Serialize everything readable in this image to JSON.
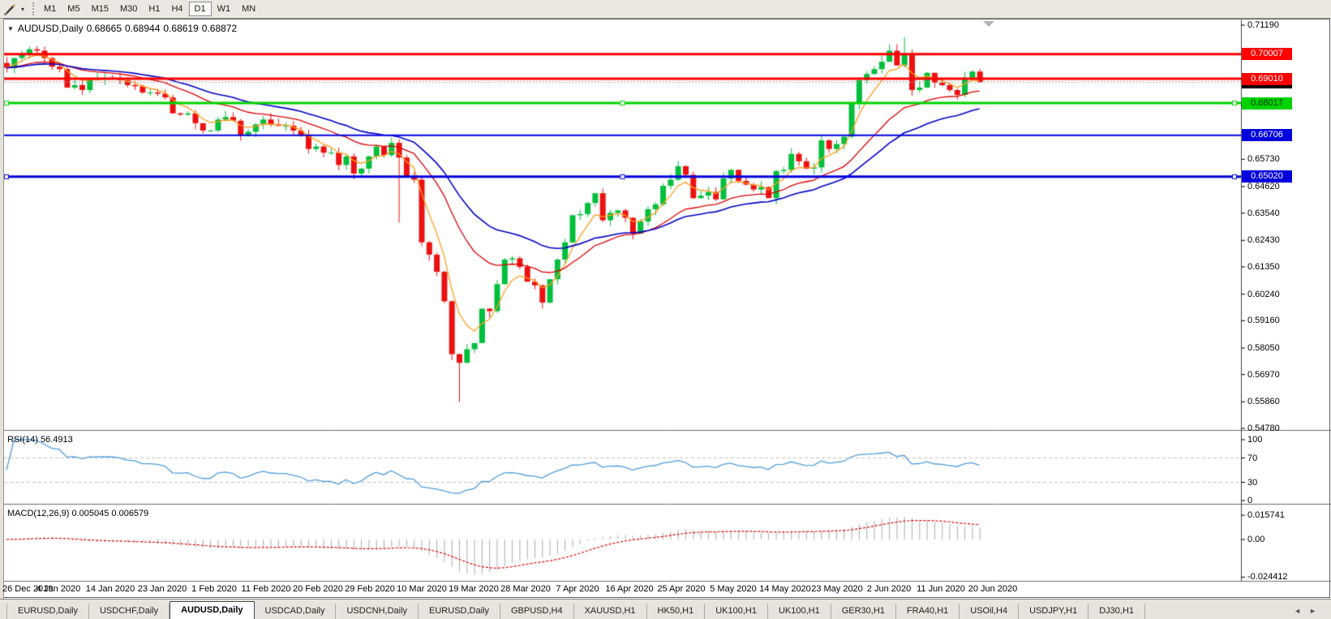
{
  "toolbar": {
    "dropdown_icon": "▾",
    "timeframes": [
      {
        "label": "M1",
        "active": false
      },
      {
        "label": "M5",
        "active": false
      },
      {
        "label": "M15",
        "active": false
      },
      {
        "label": "M30",
        "active": false
      },
      {
        "label": "H1",
        "active": false
      },
      {
        "label": "H4",
        "active": false
      },
      {
        "label": "D1",
        "active": true
      },
      {
        "label": "W1",
        "active": false
      },
      {
        "label": "MN",
        "active": false
      }
    ]
  },
  "chart_title": {
    "menu_icon": "▼",
    "symbol": "AUDUSD,Daily",
    "open": "0.68665",
    "high": "0.68944",
    "low": "0.68619",
    "close": "0.68872"
  },
  "panels": {
    "rsi_label": "RSI(14) 56.4913",
    "macd_label": "MACD(12,26,9) 0.005045 0.006579"
  },
  "price_axis": {
    "ticks": [
      "0.71190",
      "0.70110",
      "0.69000",
      "0.67920",
      "0.66810",
      "0.65730",
      "0.64620",
      "0.63540",
      "0.62430",
      "0.61350",
      "0.60240",
      "0.59160",
      "0.58050",
      "0.56970",
      "0.55860",
      "0.54780"
    ],
    "badges": [
      {
        "label": "0.68872",
        "price": 0.68872,
        "bg": "#000000",
        "fg": "#ffffff",
        "name": "current-price-badge",
        "interactable": false
      },
      {
        "label": "0.68017",
        "price": 0.68017,
        "bg": "#00d400",
        "fg": "#013301",
        "name": "hline-price-badge-green",
        "interactable": true
      },
      {
        "label": "0.66706",
        "price": 0.66706,
        "bg": "#0000dd",
        "fg": "#ffffff",
        "name": "hline-price-badge-blue",
        "interactable": true
      },
      {
        "label": "0.65020",
        "price": 0.6502,
        "bg": "#0000dd",
        "fg": "#ffffff",
        "name": "hline-price-badge-blue",
        "interactable": true
      },
      {
        "label": "0.70007",
        "price": 0.70007,
        "bg": "#fe0000",
        "fg": "#ffffff",
        "name": "hline-price-badge-red",
        "interactable": true
      },
      {
        "label": "0.69010",
        "price": 0.6901,
        "bg": "#fe0000",
        "fg": "#ffffff",
        "name": "hline-price-badge-red",
        "interactable": true
      }
    ]
  },
  "rsi_axis": [
    "100",
    "70",
    "30",
    "0"
  ],
  "macd_axis": [
    "0.015741",
    "0.00",
    "-0.024412"
  ],
  "date_axis": [
    "26 Dec 2019",
    "4 Jan 2020",
    "14 Jan 2020",
    "23 Jan 2020",
    "1 Feb 2020",
    "11 Feb 2020",
    "20 Feb 2020",
    "29 Feb 2020",
    "10 Mar 2020",
    "19 Mar 2020",
    "28 Mar 2020",
    "7 Apr 2020",
    "16 Apr 2020",
    "25 Apr 2020",
    "5 May 2020",
    "14 May 2020",
    "23 May 2020",
    "2 Jun 2020",
    "11 Jun 2020",
    "20 Jun 2020"
  ],
  "chart_data": {
    "type": "candlestick",
    "symbol": "AUDUSD",
    "period": "Daily",
    "ohlc_last": {
      "open": 0.68665,
      "high": 0.68944,
      "low": 0.68619,
      "close": 0.68872
    },
    "ylim": [
      0.5478,
      0.7119
    ],
    "closes": [
      0.6945,
      0.6985,
      0.7,
      0.7021,
      0.7015,
      0.6985,
      0.695,
      0.694,
      0.6865,
      0.6875,
      0.6855,
      0.69,
      0.69,
      0.6905,
      0.6902,
      0.6895,
      0.6875,
      0.687,
      0.6845,
      0.6845,
      0.684,
      0.6825,
      0.676,
      0.6755,
      0.676,
      0.672,
      0.669,
      0.669,
      0.6735,
      0.6745,
      0.673,
      0.667,
      0.6685,
      0.6715,
      0.6735,
      0.6715,
      0.671,
      0.671,
      0.669,
      0.667,
      0.6615,
      0.6625,
      0.66,
      0.66,
      0.655,
      0.6585,
      0.6515,
      0.6535,
      0.6585,
      0.6625,
      0.659,
      0.664,
      0.658,
      0.65,
      0.649,
      0.6235,
      0.6185,
      0.6115,
      0.5995,
      0.578,
      0.5745,
      0.58,
      0.5825,
      0.5965,
      0.5955,
      0.6065,
      0.6165,
      0.617,
      0.6135,
      0.6075,
      0.606,
      0.599,
      0.6085,
      0.6165,
      0.6235,
      0.6345,
      0.635,
      0.6395,
      0.6435,
      0.6325,
      0.6355,
      0.6365,
      0.6335,
      0.627,
      0.632,
      0.637,
      0.639,
      0.6465,
      0.649,
      0.6545,
      0.651,
      0.6415,
      0.6425,
      0.644,
      0.641,
      0.6495,
      0.653,
      0.6485,
      0.647,
      0.645,
      0.646,
      0.6415,
      0.6525,
      0.653,
      0.6595,
      0.6565,
      0.6535,
      0.654,
      0.665,
      0.6615,
      0.6635,
      0.6665,
      0.68,
      0.6895,
      0.692,
      0.694,
      0.697,
      0.7015,
      0.6955,
      0.7,
      0.6855,
      0.6865,
      0.6925,
      0.6885,
      0.6875,
      0.6855,
      0.6835,
      0.6905,
      0.693,
      0.6887
    ],
    "wick_overrides": {
      "3": {
        "high": 0.7032
      },
      "52": {
        "low": 0.6315
      },
      "60": {
        "low": 0.5585
      },
      "117": {
        "high": 0.704
      },
      "119": {
        "high": 0.707
      }
    },
    "candle_colors": {
      "up": "#00bf3c",
      "down": "#ec1111"
    },
    "moving_averages": [
      {
        "period": 5,
        "color": "#ff9d1e",
        "width": 1.3
      },
      {
        "period": 18,
        "color": "#db0000",
        "width": 1.3
      },
      {
        "period": 30,
        "color": "#0000c8",
        "width": 1.6
      }
    ],
    "hlines": [
      {
        "price": 0.70007,
        "color": "#fe0000",
        "width": 3,
        "style": "solid",
        "handles": false
      },
      {
        "price": 0.6901,
        "color": "#fe0000",
        "width": 3,
        "style": "solid",
        "handles": false
      },
      {
        "price": 0.68017,
        "color": "#00d400",
        "width": 3,
        "style": "solid",
        "handles": true
      },
      {
        "price": 0.66706,
        "color": "#0000dd",
        "width": 2,
        "style": "solid",
        "handles": false
      },
      {
        "price": 0.6502,
        "color": "#0000dd",
        "width": 3,
        "style": "solid",
        "handles": true
      }
    ],
    "current_price_line": {
      "price": 0.68872,
      "color": "#9c9c9c",
      "style": "dot"
    },
    "rsi": {
      "period": 14,
      "value": 56.4913,
      "color": "#4e9cdb",
      "levels": [
        70,
        30
      ]
    },
    "macd": {
      "fast": 12,
      "slow": 26,
      "signal": 9,
      "macd_value": 0.005045,
      "signal_value": 0.006579,
      "hist_color": "#ababab",
      "signal_color": "#e00000"
    }
  },
  "tabbar": {
    "tabs": [
      {
        "label": "EURUSD,Daily",
        "active": false
      },
      {
        "label": "USDCHF,Daily",
        "active": false
      },
      {
        "label": "AUDUSD,Daily",
        "active": true
      },
      {
        "label": "USDCAD,Daily",
        "active": false
      },
      {
        "label": "USDCNH,Daily",
        "active": false
      },
      {
        "label": "EURUSD,Daily",
        "active": false
      },
      {
        "label": "GBPUSD,H4",
        "active": false
      },
      {
        "label": "XAUUSD,H1",
        "active": false
      },
      {
        "label": "HK50,H1",
        "active": false
      },
      {
        "label": "UK100,H1",
        "active": false
      },
      {
        "label": "UK100,H1",
        "active": false
      },
      {
        "label": "GER30,H1",
        "active": false
      },
      {
        "label": "FRA40,H1",
        "active": false
      },
      {
        "label": "USOil,H4",
        "active": false
      },
      {
        "label": "USDJPY,H1",
        "active": false
      },
      {
        "label": "DJ30,H1",
        "active": false
      }
    ],
    "scroll_left": "◄",
    "scroll_right": "►"
  }
}
